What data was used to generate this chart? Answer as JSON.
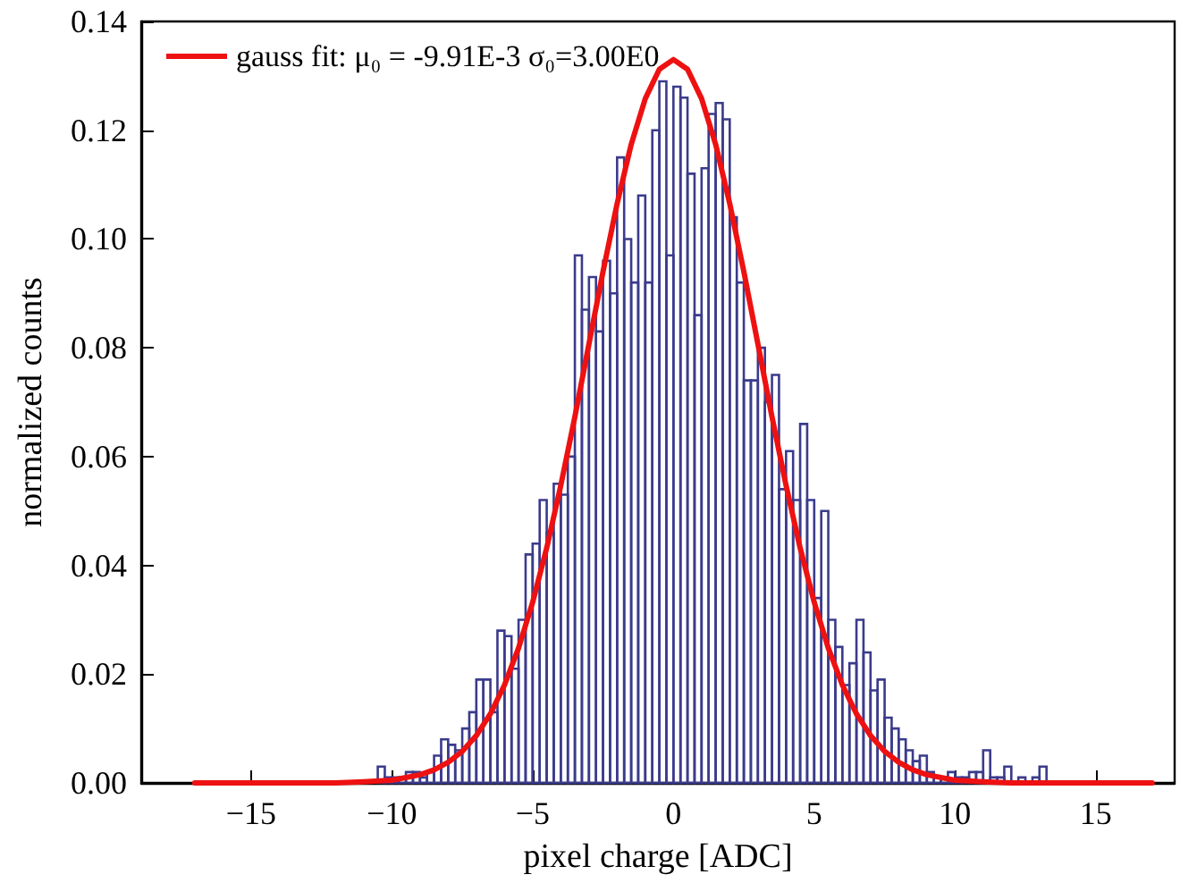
{
  "chart_data": {
    "type": "histogram",
    "xlabel": "pixel charge [ADC]",
    "ylabel": "normalized counts",
    "xlim": [
      -18.9,
      17.8
    ],
    "xticks": [
      -15,
      -10,
      -5,
      0,
      5,
      10,
      15
    ],
    "ylim": [
      0,
      0.14
    ],
    "yticks": [
      {
        "value": 0,
        "label": "0.00"
      },
      0.02,
      0.04,
      0.06,
      0.08,
      {
        "value": 0.1,
        "label": "0.10"
      },
      0.12,
      0.14
    ],
    "grid": false,
    "legend": "top left",
    "series": [
      {
        "color": "#3b3b8c",
        "bins": [
          -10.5,
          -10.25,
          -10,
          -9.75,
          -9.5,
          -9.25,
          -9,
          -8.75,
          -8.5,
          -8.25,
          -8,
          -7.75,
          -7.5,
          -7.25,
          -7,
          -6.75,
          -6.5,
          -6.25,
          -6,
          -5.75,
          -5.5,
          -5.25,
          -5,
          -4.75,
          -4.5,
          -4.25,
          -4,
          -3.75,
          -3.5,
          -3.25,
          -3,
          -2.75,
          -2.5,
          -2.25,
          -2,
          -1.75,
          -1.5,
          -1.25,
          -1,
          -0.75,
          -0.5,
          -0.25,
          0,
          0.25,
          0.5,
          0.75,
          1,
          1.25,
          1.5,
          1.75,
          2,
          2.25,
          2.5,
          2.75,
          3,
          3.25,
          3.5,
          3.75,
          4,
          4.25,
          4.5,
          4.75,
          5,
          5.25,
          5.5,
          5.75,
          6,
          6.25,
          6.5,
          6.75,
          7,
          7.25,
          7.5,
          7.75,
          8,
          8.25,
          8.5,
          8.75,
          9,
          9.25,
          9.5,
          9.75,
          10,
          10.25,
          10.5,
          10.75,
          11,
          11.25,
          11.5,
          11.75,
          12,
          12.25,
          12.5,
          12.75,
          13,
          13.25,
          13.5
        ],
        "values": [
          0.003,
          0.001,
          0.001,
          0.001,
          0.002,
          0.002,
          0.001,
          0.002,
          0.005,
          0.008,
          0.007,
          0.006,
          0.01,
          0.013,
          0.019,
          0.019,
          0.013,
          0.028,
          0.027,
          0.021,
          0.03,
          0.042,
          0.044,
          0.052,
          0.046,
          0.055,
          0.053,
          0.06,
          0.097,
          0.087,
          0.093,
          0.083,
          0.096,
          0.09,
          0.115,
          0.1,
          0.092,
          0.108,
          0.092,
          0.12,
          0.129,
          0.097,
          0.128,
          0.126,
          0.112,
          0.086,
          0.113,
          0.123,
          0.125,
          0.122,
          0.104,
          0.092,
          0.074,
          0.074,
          0.08,
          0.07,
          0.075,
          0.054,
          0.061,
          0.052,
          0.066,
          0.052,
          0.034,
          0.05,
          0.03,
          0.025,
          0.018,
          0.022,
          0.03,
          0.024,
          0.017,
          0.019,
          0.012,
          0.01,
          0.008,
          0.006,
          0.004,
          0.005,
          0.002,
          0.001,
          0.001,
          0.002,
          0.001,
          0.001,
          0.002,
          0.002,
          0.006,
          0.001,
          0.001,
          0.003,
          0,
          0.001,
          0,
          0.001,
          0.003,
          0
        ]
      },
      {
        "type": "line",
        "name": "gauss fit: μ₀ = -9.91E-3 σ₀=3.00E0",
        "color": "#ee1111",
        "marker": "none",
        "line_style": "solid",
        "x": [
          -17,
          -16,
          -15,
          -14,
          -13,
          -12,
          -11,
          -10,
          -9,
          -8.5,
          -8,
          -7.5,
          -7,
          -6.5,
          -6,
          -5.5,
          -5,
          -4.5,
          -4,
          -3.5,
          -3,
          -2.5,
          -2,
          -1.5,
          -1,
          -0.5,
          0,
          0.5,
          1,
          1.5,
          2,
          2.5,
          3,
          3.5,
          4,
          4.5,
          5,
          5.5,
          6,
          6.5,
          7,
          7.5,
          8,
          8.5,
          9,
          10,
          11,
          12,
          13,
          14,
          15,
          16,
          17
        ],
        "values": [
          0,
          0,
          0,
          0,
          0,
          0,
          0.0002,
          0.0005,
          0.0015,
          0.0024,
          0.0038,
          0.0058,
          0.0087,
          0.0127,
          0.018,
          0.0248,
          0.0332,
          0.0432,
          0.0547,
          0.0673,
          0.0807,
          0.094,
          0.1065,
          0.1174,
          0.1258,
          0.1312,
          0.133,
          0.1312,
          0.1258,
          0.1174,
          0.1065,
          0.094,
          0.0807,
          0.0673,
          0.0547,
          0.0432,
          0.0332,
          0.0248,
          0.018,
          0.0127,
          0.0087,
          0.0058,
          0.0038,
          0.0024,
          0.0015,
          0.0005,
          0.0002,
          0,
          0,
          0,
          0,
          0,
          0
        ]
      }
    ]
  }
}
